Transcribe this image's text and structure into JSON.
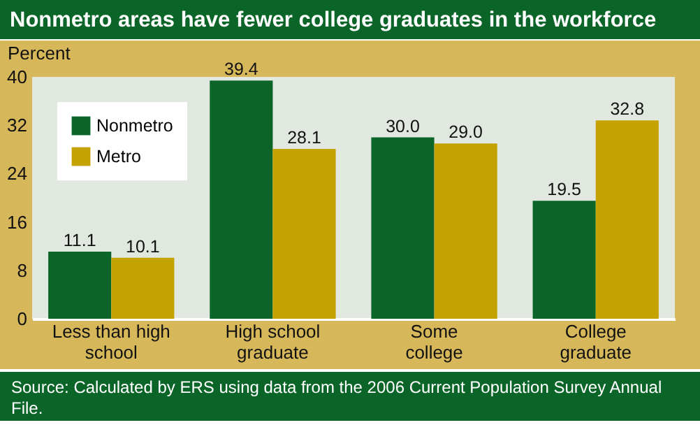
{
  "chart_data": {
    "type": "bar",
    "title": "Nonmetro areas have fewer college graduates in the workforce",
    "ylabel": "Percent",
    "categories": [
      "Less than high school",
      "High school graduate",
      "Some college",
      "College graduate"
    ],
    "series": [
      {
        "name": "Nonmetro",
        "color": "#0b6528",
        "values": [
          11.1,
          39.4,
          30.0,
          19.5
        ],
        "value_labels": [
          "11.1",
          "39.4",
          "30.0",
          "19.5"
        ]
      },
      {
        "name": "Metro",
        "color": "#c4a300",
        "values": [
          10.1,
          28.1,
          29.0,
          32.8
        ],
        "value_labels": [
          "10.1",
          "28.1",
          "29.0",
          "32.8"
        ]
      }
    ],
    "ylim": [
      0,
      40
    ],
    "yticks": [
      0,
      8,
      16,
      24,
      32,
      40
    ],
    "legend": "top left",
    "annotations": [
      "Source: Calculated by ERS using data from the 2006 Current Population Survey Annual File."
    ]
  }
}
